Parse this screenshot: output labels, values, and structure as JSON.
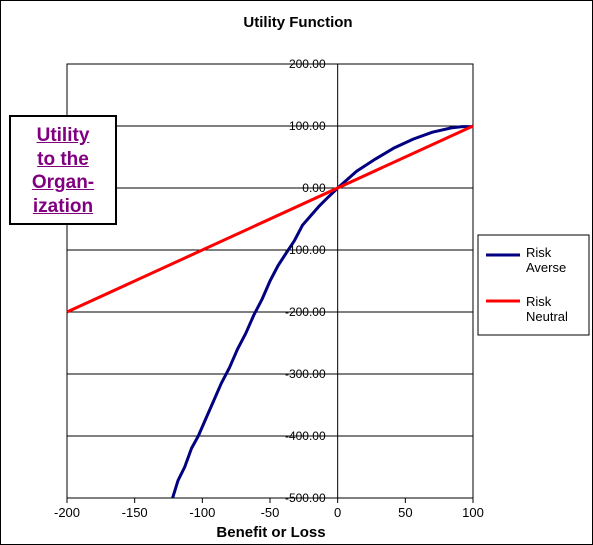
{
  "chart_data": {
    "type": "line",
    "title": "Utility Function",
    "xlabel": "Benefit or Loss",
    "ylabel": "",
    "xlim": [
      -200,
      100
    ],
    "ylim": [
      -500,
      200
    ],
    "x_ticks": [
      "-200",
      "-150",
      "-100",
      "-50",
      "0",
      "50",
      "100"
    ],
    "y_ticks": [
      "200.00",
      "100.00",
      "0.00",
      "-100.00",
      "-200.00",
      "-300.00",
      "-400.00",
      "-500.00"
    ],
    "grid": true,
    "legend_position": "right",
    "series": [
      {
        "name": "Risk Averse",
        "color": "#000080",
        "points": [
          [
            -122,
            -500
          ],
          [
            -118,
            -472
          ],
          [
            -113,
            -450
          ],
          [
            -108,
            -420
          ],
          [
            -103,
            -400
          ],
          [
            -97,
            -370
          ],
          [
            -92,
            -345
          ],
          [
            -86,
            -315
          ],
          [
            -80,
            -290
          ],
          [
            -74,
            -260
          ],
          [
            -68,
            -235
          ],
          [
            -62,
            -205
          ],
          [
            -56,
            -180
          ],
          [
            -50,
            -150
          ],
          [
            -44,
            -125
          ],
          [
            -38,
            -105
          ],
          [
            -32,
            -85
          ],
          [
            -26,
            -60
          ],
          [
            -20,
            -45
          ],
          [
            -14,
            -30
          ],
          [
            -8,
            -17
          ],
          [
            0,
            0
          ],
          [
            14,
            27
          ],
          [
            28,
            47
          ],
          [
            42,
            65
          ],
          [
            56,
            79
          ],
          [
            70,
            90
          ],
          [
            84,
            97
          ],
          [
            92,
            99
          ],
          [
            100,
            99
          ]
        ]
      },
      {
        "name": "Risk Neutral",
        "color": "#ff0000",
        "points": [
          [
            -200,
            -200
          ],
          [
            100,
            100
          ]
        ]
      }
    ],
    "legend": [
      "Risk Averse",
      "Risk Neutral"
    ],
    "annotation": [
      "Utility",
      "to the",
      "Organ-",
      "ization"
    ]
  }
}
